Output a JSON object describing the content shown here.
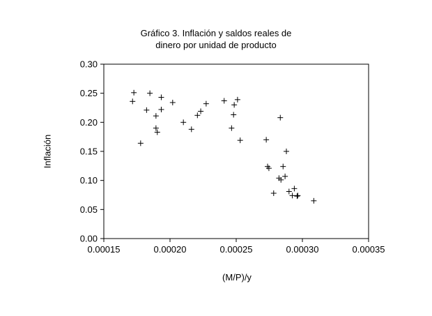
{
  "chart_data": {
    "type": "scatter",
    "title_lines": [
      "Gráfico 3. Inflación y saldos reales de",
      "dinero por unidad de producto"
    ],
    "xlabel": "(M/P)/y",
    "ylabel": "Inflación",
    "xlim": [
      0.00015,
      0.00035
    ],
    "ylim": [
      0.0,
      0.3
    ],
    "x_ticks": [
      "0.00015",
      "0.00020",
      "0.00025",
      "0.00030",
      "0.00035"
    ],
    "y_ticks": [
      "0.30",
      "0.25",
      "0.20",
      "0.15",
      "0.10",
      "0.05",
      "0.00"
    ],
    "marker": "plus",
    "grid": false,
    "points": [
      [
        0.0001727,
        0.251
      ],
      [
        0.0001717,
        0.236
      ],
      [
        0.0001778,
        0.164
      ],
      [
        0.0001848,
        0.25
      ],
      [
        0.0001823,
        0.221
      ],
      [
        0.0001894,
        0.211
      ],
      [
        0.0001894,
        0.19
      ],
      [
        0.0001904,
        0.183
      ],
      [
        0.0001934,
        0.243
      ],
      [
        0.0001934,
        0.222
      ],
      [
        0.000202,
        0.234
      ],
      [
        0.0002101,
        0.2
      ],
      [
        0.0002162,
        0.188
      ],
      [
        0.0002207,
        0.212
      ],
      [
        0.0002232,
        0.219
      ],
      [
        0.0002273,
        0.232
      ],
      [
        0.0002409,
        0.237
      ],
      [
        0.0002465,
        0.19
      ],
      [
        0.000248,
        0.213
      ],
      [
        0.0002485,
        0.23
      ],
      [
        0.000251,
        0.239
      ],
      [
        0.000253,
        0.169
      ],
      [
        0.0002727,
        0.17
      ],
      [
        0.0002737,
        0.124
      ],
      [
        0.0002747,
        0.121
      ],
      [
        0.0002783,
        0.078
      ],
      [
        0.0002823,
        0.104
      ],
      [
        0.0002833,
        0.208
      ],
      [
        0.0002838,
        0.101
      ],
      [
        0.0002854,
        0.124
      ],
      [
        0.0002869,
        0.107
      ],
      [
        0.0002879,
        0.15
      ],
      [
        0.0002899,
        0.081
      ],
      [
        0.0002924,
        0.074
      ],
      [
        0.0002939,
        0.086
      ],
      [
        0.000296,
        0.073
      ],
      [
        0.0002965,
        0.074
      ],
      [
        0.0003086,
        0.065
      ]
    ]
  }
}
